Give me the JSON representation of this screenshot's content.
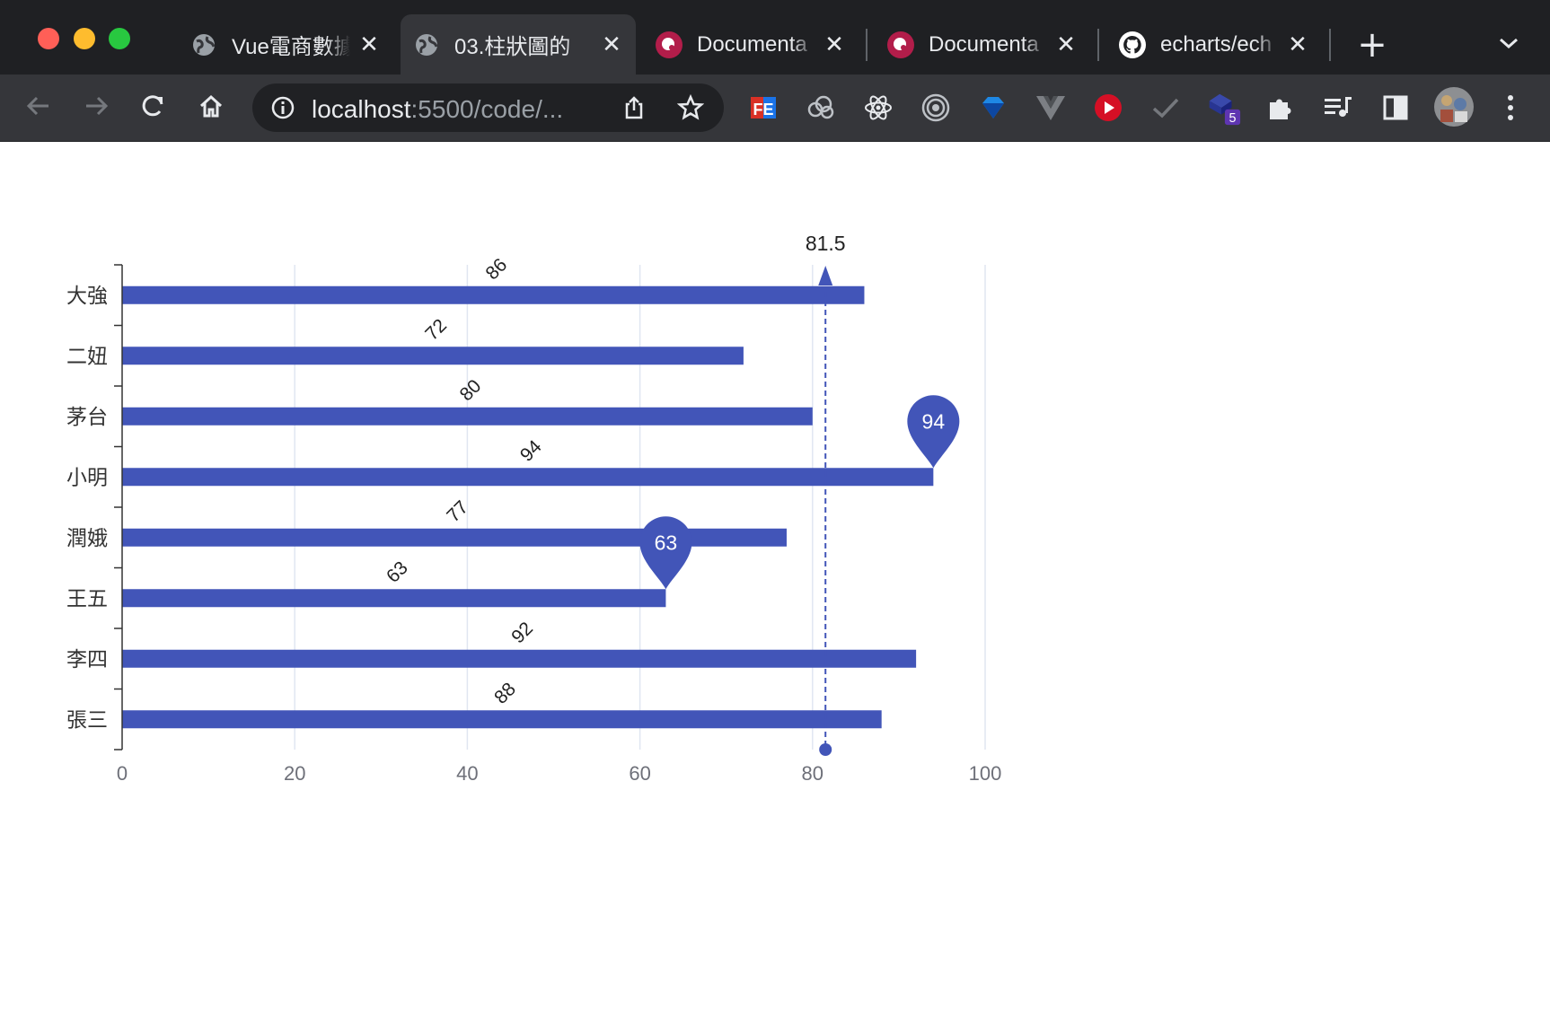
{
  "browser": {
    "tabs": [
      {
        "title": "Vue電商數據",
        "icon": "globe-icon",
        "active": false
      },
      {
        "title": "03.柱狀圖的",
        "icon": "globe-icon",
        "active": true
      },
      {
        "title": "Documenta",
        "icon": "app-icon",
        "active": false
      },
      {
        "title": "Documenta",
        "icon": "app-icon",
        "active": false
      },
      {
        "title": "echarts/ech",
        "icon": "github-icon",
        "active": false
      }
    ],
    "tab_close_glyph": "✕",
    "new_tab_glyph": "+",
    "url_host": "localhost",
    "url_rest": ":5500/code/...",
    "extension_badge": "5",
    "extensions": [
      "fe-helper-icon",
      "cloud-extension-icon",
      "react-devtools-icon",
      "target-extension-icon",
      "diamond-extension-icon",
      "vue-devtools-icon",
      "play-extension-icon",
      "check-extension-icon",
      "stack-extension-icon",
      "puzzle-extensions-icon",
      "media-control-icon",
      "side-panel-icon",
      "profile-avatar"
    ]
  },
  "colors": {
    "bar": "#4255b8",
    "axis": "#333333",
    "grid": "#e0e6f1",
    "label": "#6e7079"
  },
  "chart_data": {
    "type": "bar",
    "orientation": "horizontal",
    "categories": [
      "張三",
      "李四",
      "王五",
      "潤娥",
      "小明",
      "茅台",
      "二妞",
      "大強"
    ],
    "values": [
      88,
      92,
      63,
      77,
      94,
      80,
      72,
      86
    ],
    "xlim": [
      0,
      100
    ],
    "xticks": [
      0,
      20,
      40,
      60,
      80,
      100
    ],
    "grid": "vertical",
    "data_labels": "rotated",
    "mark_points": [
      {
        "type": "max",
        "category": "小明",
        "value": 94,
        "label": "94"
      },
      {
        "type": "min",
        "category": "王五",
        "value": 63,
        "label": "63"
      }
    ],
    "mark_line": {
      "type": "average",
      "value": 81.5,
      "label": "81.5"
    }
  }
}
